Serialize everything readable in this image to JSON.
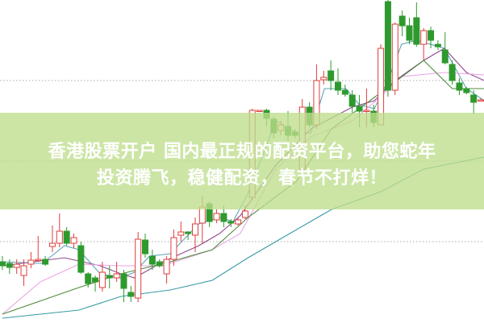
{
  "banner": {
    "line1": "香港股票开户 国内最正规的配资平台，助您蛇年",
    "line2": "投资腾飞，稳健配资，春节不打烊！"
  },
  "chart_data": {
    "type": "candlestick",
    "title": "",
    "xlabel": "",
    "ylabel": "",
    "ylim": [
      0,
      400
    ],
    "grid": "dotted horizontal",
    "colors": {
      "up": "#e03c3c",
      "down": "#2e9a2e",
      "ma5": "#5fa3b5",
      "ma10": "#8e4a8e",
      "ma20": "#eaa6e4",
      "ma30": "#4f8c3c",
      "ma60": "#3a9aa6",
      "banner": "#bede8c"
    },
    "gridlines": [
      100,
      200,
      300
    ],
    "candles_ohlc_as_open_close_high_low": [
      [
        75,
        70,
        82,
        65
      ],
      [
        73,
        68,
        78,
        60
      ],
      [
        68,
        72,
        78,
        60
      ],
      [
        58,
        70,
        78,
        45
      ],
      [
        72,
        77,
        87,
        67
      ],
      [
        77,
        78,
        107,
        75
      ],
      [
        78,
        72,
        82,
        70
      ],
      [
        94,
        98,
        120,
        87
      ],
      [
        98,
        113,
        135,
        93
      ],
      [
        113,
        98,
        118,
        95
      ],
      [
        98,
        105,
        110,
        92
      ],
      [
        95,
        62,
        100,
        60
      ],
      [
        60,
        48,
        62,
        43
      ],
      [
        55,
        50,
        58,
        38
      ],
      [
        43,
        62,
        75,
        38
      ],
      [
        58,
        55,
        70,
        42
      ],
      [
        55,
        60,
        75,
        50
      ],
      [
        60,
        42,
        65,
        25
      ],
      [
        37,
        32,
        45,
        25
      ],
      [
        30,
        103,
        112,
        25
      ],
      [
        102,
        85,
        110,
        80
      ],
      [
        82,
        72,
        90,
        65
      ],
      [
        75,
        70,
        78,
        68
      ],
      [
        60,
        78,
        82,
        48
      ],
      [
        78,
        105,
        115,
        70
      ],
      [
        108,
        112,
        125,
        100
      ],
      [
        112,
        110,
        113,
        102
      ],
      [
        108,
        122,
        130,
        87
      ],
      [
        123,
        143,
        157,
        97
      ],
      [
        147,
        125,
        150,
        118
      ],
      [
        127,
        135,
        140,
        123
      ],
      [
        135,
        125,
        145,
        118
      ],
      [
        125,
        123,
        128,
        118
      ],
      [
        122,
        127,
        130,
        120
      ],
      [
        130,
        138,
        145,
        128
      ],
      [
        155,
        263,
        265,
        152
      ],
      [
        262,
        263,
        263,
        262
      ],
      [
        263,
        253,
        265,
        243
      ],
      [
        252,
        235,
        255,
        228
      ],
      [
        238,
        245,
        250,
        232
      ],
      [
        243,
        232,
        262,
        225
      ],
      [
        236,
        232,
        240,
        228
      ],
      [
        190,
        267,
        277,
        188
      ],
      [
        267,
        245,
        273,
        242
      ],
      [
        245,
        300,
        320,
        240
      ],
      [
        301,
        304,
        312,
        295
      ],
      [
        312,
        300,
        325,
        288
      ],
      [
        298,
        288,
        315,
        282
      ],
      [
        288,
        283,
        295,
        280
      ],
      [
        282,
        268,
        288,
        260
      ],
      [
        268,
        262,
        282,
        242
      ],
      [
        262,
        263,
        290,
        242
      ],
      [
        262,
        248,
        270,
        242
      ],
      [
        245,
        340,
        345,
        245
      ],
      [
        398,
        288,
        400,
        280
      ],
      [
        288,
        370,
        372,
        282
      ],
      [
        380,
        368,
        387,
        355
      ],
      [
        368,
        350,
        378,
        345
      ],
      [
        378,
        345,
        397,
        342
      ],
      [
        345,
        362,
        365,
        325
      ],
      [
        362,
        350,
        367,
        340
      ],
      [
        345,
        342,
        350,
        338
      ],
      [
        338,
        322,
        360,
        320
      ],
      [
        320,
        300,
        325,
        295
      ],
      [
        297,
        288,
        303,
        282
      ],
      [
        290,
        285,
        292,
        283
      ],
      [
        282,
        273,
        288,
        258
      ],
      [
        275,
        276,
        278,
        274
      ]
    ],
    "moving_averages": [
      {
        "key": "ma5",
        "points": [
          [
            0,
            75
          ],
          [
            5.6,
            73
          ],
          [
            8.7,
            95
          ],
          [
            10.7,
            90
          ],
          [
            13.7,
            60
          ],
          [
            16.6,
            55
          ],
          [
            18.5,
            62
          ],
          [
            20.6,
            82
          ],
          [
            23.5,
            85
          ],
          [
            27.5,
            122
          ],
          [
            30.4,
            130
          ],
          [
            32.3,
            125
          ],
          [
            34.4,
            160
          ],
          [
            38.3,
            250
          ],
          [
            41.2,
            235
          ],
          [
            43.2,
            235
          ],
          [
            45.1,
            290
          ],
          [
            48.1,
            290
          ],
          [
            50,
            270
          ],
          [
            52.1,
            265
          ],
          [
            54,
            300
          ],
          [
            55.9,
            345
          ],
          [
            58,
            350
          ],
          [
            61.9,
            340
          ],
          [
            65,
            290
          ],
          [
            67.5,
            275
          ]
        ]
      },
      {
        "key": "ma10",
        "points": [
          [
            0,
            70
          ],
          [
            8.7,
            80
          ],
          [
            13.7,
            70
          ],
          [
            16.6,
            60
          ],
          [
            18.5,
            55
          ],
          [
            22.5,
            75
          ],
          [
            27.5,
            95
          ],
          [
            30.4,
            110
          ],
          [
            33.3,
            132
          ],
          [
            38.3,
            195
          ],
          [
            43.2,
            240
          ],
          [
            49,
            267
          ],
          [
            52.1,
            275
          ],
          [
            55,
            300
          ],
          [
            59,
            325
          ],
          [
            61.9,
            340
          ],
          [
            65,
            310
          ],
          [
            67.5,
            300
          ]
        ]
      },
      {
        "key": "ma20",
        "points": [
          [
            0,
            10
          ],
          [
            5.3,
            50
          ],
          [
            10.7,
            72
          ],
          [
            16.6,
            70
          ],
          [
            22.5,
            70
          ],
          [
            29.4,
            90
          ],
          [
            33.3,
            110
          ],
          [
            38.3,
            190
          ],
          [
            43.2,
            230
          ],
          [
            49,
            250
          ],
          [
            53,
            280
          ],
          [
            55.9,
            305
          ],
          [
            61.9,
            310
          ],
          [
            67.5,
            307
          ]
        ]
      },
      {
        "key": "ma30",
        "points": [
          [
            0,
            10
          ],
          [
            10.7,
            43
          ],
          [
            16.6,
            60
          ],
          [
            23.5,
            75
          ],
          [
            29.4,
            90
          ],
          [
            34.4,
            130
          ],
          [
            41.2,
            175
          ],
          [
            46.1,
            240
          ],
          [
            53,
            285
          ],
          [
            59,
            325
          ],
          [
            63,
            290
          ],
          [
            67.5,
            290
          ]
        ]
      },
      {
        "key": "ma60",
        "points": [
          [
            0,
            5
          ],
          [
            10.7,
            15
          ],
          [
            16.6,
            32
          ],
          [
            23.5,
            40
          ],
          [
            29.4,
            52
          ],
          [
            34.4,
            80
          ],
          [
            41.2,
            115
          ],
          [
            46.1,
            140
          ],
          [
            53,
            162
          ],
          [
            59,
            190
          ],
          [
            67.5,
            205
          ]
        ]
      }
    ]
  }
}
